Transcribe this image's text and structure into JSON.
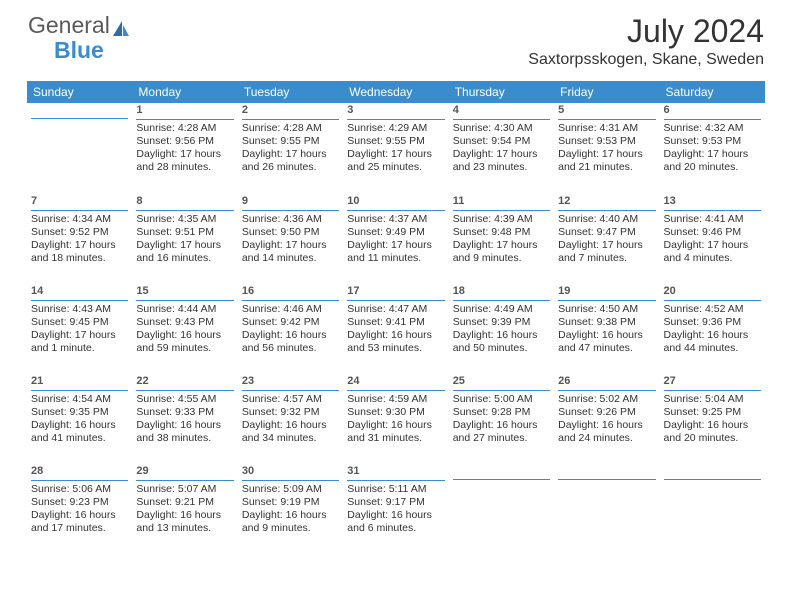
{
  "logo": {
    "part1": "General",
    "part2": "Blue"
  },
  "title": "July 2024",
  "location": "Saxtorpsskogen, Skane, Sweden",
  "colors": {
    "header_bg": "#3a8ccc",
    "rule": "#3a8ccc",
    "text": "#333333",
    "logo_gray": "#5a5a5a"
  },
  "weekdays": [
    "Sunday",
    "Monday",
    "Tuesday",
    "Wednesday",
    "Thursday",
    "Friday",
    "Saturday"
  ],
  "cells": [
    [
      {
        "day": "",
        "lines": []
      },
      {
        "day": "1",
        "lines": [
          "Sunrise: 4:28 AM",
          "Sunset: 9:56 PM",
          "Daylight: 17 hours",
          "and 28 minutes."
        ]
      },
      {
        "day": "2",
        "lines": [
          "Sunrise: 4:28 AM",
          "Sunset: 9:55 PM",
          "Daylight: 17 hours",
          "and 26 minutes."
        ]
      },
      {
        "day": "3",
        "lines": [
          "Sunrise: 4:29 AM",
          "Sunset: 9:55 PM",
          "Daylight: 17 hours",
          "and 25 minutes."
        ]
      },
      {
        "day": "4",
        "lines": [
          "Sunrise: 4:30 AM",
          "Sunset: 9:54 PM",
          "Daylight: 17 hours",
          "and 23 minutes."
        ]
      },
      {
        "day": "5",
        "lines": [
          "Sunrise: 4:31 AM",
          "Sunset: 9:53 PM",
          "Daylight: 17 hours",
          "and 21 minutes."
        ]
      },
      {
        "day": "6",
        "lines": [
          "Sunrise: 4:32 AM",
          "Sunset: 9:53 PM",
          "Daylight: 17 hours",
          "and 20 minutes."
        ]
      }
    ],
    [
      {
        "day": "7",
        "lines": [
          "Sunrise: 4:34 AM",
          "Sunset: 9:52 PM",
          "Daylight: 17 hours",
          "and 18 minutes."
        ]
      },
      {
        "day": "8",
        "lines": [
          "Sunrise: 4:35 AM",
          "Sunset: 9:51 PM",
          "Daylight: 17 hours",
          "and 16 minutes."
        ]
      },
      {
        "day": "9",
        "lines": [
          "Sunrise: 4:36 AM",
          "Sunset: 9:50 PM",
          "Daylight: 17 hours",
          "and 14 minutes."
        ]
      },
      {
        "day": "10",
        "lines": [
          "Sunrise: 4:37 AM",
          "Sunset: 9:49 PM",
          "Daylight: 17 hours",
          "and 11 minutes."
        ]
      },
      {
        "day": "11",
        "lines": [
          "Sunrise: 4:39 AM",
          "Sunset: 9:48 PM",
          "Daylight: 17 hours",
          "and 9 minutes."
        ]
      },
      {
        "day": "12",
        "lines": [
          "Sunrise: 4:40 AM",
          "Sunset: 9:47 PM",
          "Daylight: 17 hours",
          "and 7 minutes."
        ]
      },
      {
        "day": "13",
        "lines": [
          "Sunrise: 4:41 AM",
          "Sunset: 9:46 PM",
          "Daylight: 17 hours",
          "and 4 minutes."
        ]
      }
    ],
    [
      {
        "day": "14",
        "lines": [
          "Sunrise: 4:43 AM",
          "Sunset: 9:45 PM",
          "Daylight: 17 hours",
          "and 1 minute."
        ]
      },
      {
        "day": "15",
        "lines": [
          "Sunrise: 4:44 AM",
          "Sunset: 9:43 PM",
          "Daylight: 16 hours",
          "and 59 minutes."
        ]
      },
      {
        "day": "16",
        "lines": [
          "Sunrise: 4:46 AM",
          "Sunset: 9:42 PM",
          "Daylight: 16 hours",
          "and 56 minutes."
        ]
      },
      {
        "day": "17",
        "lines": [
          "Sunrise: 4:47 AM",
          "Sunset: 9:41 PM",
          "Daylight: 16 hours",
          "and 53 minutes."
        ]
      },
      {
        "day": "18",
        "lines": [
          "Sunrise: 4:49 AM",
          "Sunset: 9:39 PM",
          "Daylight: 16 hours",
          "and 50 minutes."
        ]
      },
      {
        "day": "19",
        "lines": [
          "Sunrise: 4:50 AM",
          "Sunset: 9:38 PM",
          "Daylight: 16 hours",
          "and 47 minutes."
        ]
      },
      {
        "day": "20",
        "lines": [
          "Sunrise: 4:52 AM",
          "Sunset: 9:36 PM",
          "Daylight: 16 hours",
          "and 44 minutes."
        ]
      }
    ],
    [
      {
        "day": "21",
        "lines": [
          "Sunrise: 4:54 AM",
          "Sunset: 9:35 PM",
          "Daylight: 16 hours",
          "and 41 minutes."
        ]
      },
      {
        "day": "22",
        "lines": [
          "Sunrise: 4:55 AM",
          "Sunset: 9:33 PM",
          "Daylight: 16 hours",
          "and 38 minutes."
        ]
      },
      {
        "day": "23",
        "lines": [
          "Sunrise: 4:57 AM",
          "Sunset: 9:32 PM",
          "Daylight: 16 hours",
          "and 34 minutes."
        ]
      },
      {
        "day": "24",
        "lines": [
          "Sunrise: 4:59 AM",
          "Sunset: 9:30 PM",
          "Daylight: 16 hours",
          "and 31 minutes."
        ]
      },
      {
        "day": "25",
        "lines": [
          "Sunrise: 5:00 AM",
          "Sunset: 9:28 PM",
          "Daylight: 16 hours",
          "and 27 minutes."
        ]
      },
      {
        "day": "26",
        "lines": [
          "Sunrise: 5:02 AM",
          "Sunset: 9:26 PM",
          "Daylight: 16 hours",
          "and 24 minutes."
        ]
      },
      {
        "day": "27",
        "lines": [
          "Sunrise: 5:04 AM",
          "Sunset: 9:25 PM",
          "Daylight: 16 hours",
          "and 20 minutes."
        ]
      }
    ],
    [
      {
        "day": "28",
        "lines": [
          "Sunrise: 5:06 AM",
          "Sunset: 9:23 PM",
          "Daylight: 16 hours",
          "and 17 minutes."
        ]
      },
      {
        "day": "29",
        "lines": [
          "Sunrise: 5:07 AM",
          "Sunset: 9:21 PM",
          "Daylight: 16 hours",
          "and 13 minutes."
        ]
      },
      {
        "day": "30",
        "lines": [
          "Sunrise: 5:09 AM",
          "Sunset: 9:19 PM",
          "Daylight: 16 hours",
          "and 9 minutes."
        ]
      },
      {
        "day": "31",
        "lines": [
          "Sunrise: 5:11 AM",
          "Sunset: 9:17 PM",
          "Daylight: 16 hours",
          "and 6 minutes."
        ]
      },
      {
        "day": "",
        "lines": []
      },
      {
        "day": "",
        "lines": []
      },
      {
        "day": "",
        "lines": []
      }
    ]
  ]
}
